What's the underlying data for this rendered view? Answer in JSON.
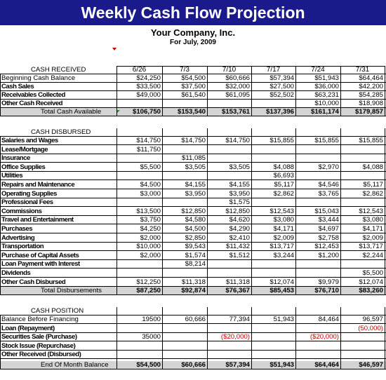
{
  "title": "Weekly Cash Flow Projection",
  "company": "Your Company, Inc.",
  "period": "For July, 2009",
  "weeks": [
    "6/26",
    "7/3",
    "7/10",
    "7/17",
    "7/24",
    "7/31"
  ],
  "received": {
    "heading": "CASH RECEIVED",
    "rows": [
      {
        "label": "Beginning Cash Balance",
        "values": [
          "$24,250",
          "$54,500",
          "$60,666",
          "$57,394",
          "$51,943",
          "$64,464"
        ]
      },
      {
        "label": "Cash Sales",
        "values": [
          "$33,500",
          "$37,500",
          "$32,000",
          "$27,500",
          "$36,000",
          "$42,200"
        ]
      },
      {
        "label": "Receivables Collected",
        "values": [
          "$49,000",
          "$61,540",
          "$61,095",
          "$52,502",
          "$63,231",
          "$54,285"
        ]
      },
      {
        "label": "Other Cash Received",
        "values": [
          "",
          "",
          "",
          "",
          "$10,000",
          "$18,908"
        ]
      }
    ],
    "total": {
      "label": "Total Cash Available",
      "values": [
        "$106,750",
        "$153,540",
        "$153,761",
        "$137,396",
        "$161,174",
        "$179,857"
      ]
    }
  },
  "disbursed": {
    "heading": "CASH DISBURSED",
    "rows": [
      {
        "label": "Salaries and Wages",
        "values": [
          "$14,750",
          "$14,750",
          "$14,750",
          "$15,855",
          "$15,855",
          "$15,855"
        ]
      },
      {
        "label": "Lease/Mortgage",
        "values": [
          "$11,750",
          "",
          "",
          "",
          "",
          ""
        ]
      },
      {
        "label": "Insurance",
        "values": [
          "",
          "$11,085",
          "",
          "",
          "",
          ""
        ]
      },
      {
        "label": "Office Supplies",
        "values": [
          "$5,500",
          "$3,505",
          "$3,505",
          "$4,088",
          "$2,970",
          "$4,088"
        ]
      },
      {
        "label": "Utilities",
        "values": [
          "",
          "",
          "",
          "$6,693",
          "",
          ""
        ]
      },
      {
        "label": "Repairs and Maintenance",
        "values": [
          "$4,500",
          "$4,155",
          "$4,155",
          "$5,117",
          "$4,546",
          "$5,117"
        ]
      },
      {
        "label": "Operating Supplies",
        "values": [
          "$3,000",
          "$3,950",
          "$3,950",
          "$2,862",
          "$3,765",
          "$2,862"
        ]
      },
      {
        "label": "Professional Fees",
        "values": [
          "",
          "",
          "$1,575",
          "",
          "",
          ""
        ]
      },
      {
        "label": "Commissions",
        "values": [
          "$13,500",
          "$12,850",
          "$12,850",
          "$12,543",
          "$15,043",
          "$12,543"
        ]
      },
      {
        "label": "Travel and Entertainment",
        "values": [
          "$3,750",
          "$4,580",
          "$4,620",
          "$3,080",
          "$3,444",
          "$3,080"
        ]
      },
      {
        "label": "Purchases",
        "values": [
          "$4,250",
          "$4,500",
          "$4,290",
          "$4,171",
          "$4,697",
          "$4,171"
        ]
      },
      {
        "label": "Advertising",
        "values": [
          "$2,000",
          "$2,850",
          "$2,410",
          "$2,009",
          "$2,758",
          "$2,009"
        ]
      },
      {
        "label": "Transportation",
        "values": [
          "$10,000",
          "$9,543",
          "$11,432",
          "$13,717",
          "$12,453",
          "$13,717"
        ]
      },
      {
        "label": "Purchase of Capital Assets",
        "values": [
          "$2,000",
          "$1,574",
          "$1,512",
          "$3,244",
          "$1,200",
          "$2,244"
        ]
      },
      {
        "label": "Loan Payment with Interest",
        "values": [
          "",
          "$8,214",
          "",
          "",
          "",
          ""
        ]
      },
      {
        "label": "Dividends",
        "values": [
          "",
          "",
          "",
          "",
          "",
          "$5,500"
        ]
      },
      {
        "label": "Other Cash Disbursed",
        "values": [
          "$12,250",
          "$11,318",
          "$11,318",
          "$12,074",
          "$9,979",
          "$12,074"
        ]
      }
    ],
    "total": {
      "label": "Total Disbursements",
      "values": [
        "$87,250",
        "$92,874",
        "$76,367",
        "$85,453",
        "$76,710",
        "$83,260"
      ]
    }
  },
  "position": {
    "heading": "CASH POSITION",
    "rows": [
      {
        "label": "Balance Before Financing",
        "values": [
          "19500",
          "60,666",
          "77,394",
          "51,943",
          "84,464",
          "96,597"
        ]
      },
      {
        "label": "Loan (Repayment)",
        "values": [
          "",
          "",
          "",
          "",
          "",
          "(50,000)"
        ]
      },
      {
        "label": "Securities Sale (Purchase)",
        "values": [
          "35000",
          "",
          "($20,000)",
          "",
          "($20,000)",
          ""
        ]
      },
      {
        "label": "Stock Issue (Repurchase)",
        "values": [
          "",
          "",
          "",
          "",
          "",
          ""
        ]
      },
      {
        "label": "Other Received (Disbursed)",
        "values": [
          "",
          "",
          "",
          "",
          "",
          ""
        ]
      }
    ],
    "total": {
      "label": "End Of Month Balance",
      "values": [
        "$54,500",
        "$60,666",
        "$57,394",
        "$51,943",
        "$64,464",
        "$46,597"
      ]
    }
  },
  "colors": {
    "banner": "#1a1a8c",
    "negative": "#cc0000",
    "total_shade": "#d4d4d4"
  }
}
